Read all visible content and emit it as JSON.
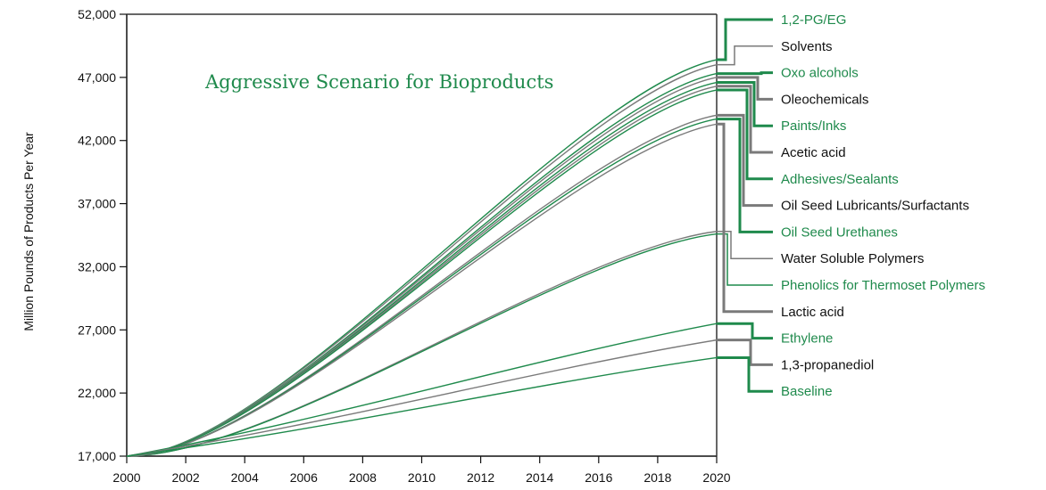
{
  "chart_data": {
    "type": "line",
    "title": "Aggressive Scenario for Bioproducts",
    "xlabel": "",
    "ylabel": "Million Pounds of Products Per Year",
    "xlim": [
      2000,
      2020
    ],
    "ylim": [
      17000,
      52000
    ],
    "x_ticks": [
      "2000",
      "2002",
      "2004",
      "2006",
      "2008",
      "2010",
      "2012",
      "2014",
      "2016",
      "2018",
      "2020"
    ],
    "y_ticks": [
      "17,000",
      "22,000",
      "27,000",
      "32,000",
      "37,000",
      "42,000",
      "47,000",
      "52,000"
    ],
    "grid": false,
    "legend_placement": "right",
    "start": {
      "x": 2000,
      "y": 17000
    },
    "series": [
      {
        "name": "1,2-PG/EG",
        "color": "#1f8a4c",
        "end": 48400,
        "weight": "thick",
        "shape": "s"
      },
      {
        "name": "Solvents",
        "color": "#7a7a7a",
        "end": 48000,
        "weight": "thin",
        "shape": "s"
      },
      {
        "name": "Oxo alcohols",
        "color": "#1f8a4c",
        "end": 47300,
        "weight": "thick",
        "shape": "s"
      },
      {
        "name": "Oleochemicals",
        "color": "#7a7a7a",
        "end": 47000,
        "weight": "thick",
        "shape": "s"
      },
      {
        "name": "Paints/Inks",
        "color": "#1f8a4c",
        "end": 46600,
        "weight": "thick",
        "shape": "s"
      },
      {
        "name": "Acetic acid",
        "color": "#7a7a7a",
        "end": 46300,
        "weight": "thick",
        "shape": "s"
      },
      {
        "name": "Adhesives/Sealants",
        "color": "#1f8a4c",
        "end": 46000,
        "weight": "thick",
        "shape": "s"
      },
      {
        "name": "Oil Seed Lubricants/Surfactants",
        "color": "#7a7a7a",
        "end": 44000,
        "weight": "thick",
        "shape": "s"
      },
      {
        "name": "Oil Seed Urethanes",
        "color": "#1f8a4c",
        "end": 43700,
        "weight": "thick",
        "shape": "s"
      },
      {
        "name": "Water Soluble Polymers",
        "color": "#7a7a7a",
        "end": 34800,
        "weight": "thin",
        "shape": "s"
      },
      {
        "name": "Phenolics for Thermoset Polymers",
        "color": "#1f8a4c",
        "end": 34600,
        "weight": "thin",
        "shape": "s"
      },
      {
        "name": "Lactic acid",
        "color": "#7a7a7a",
        "end": 43300,
        "weight": "thick",
        "shape": "s"
      },
      {
        "name": "Ethylene",
        "color": "#1f8a4c",
        "end": 27500,
        "weight": "thick",
        "shape": "c"
      },
      {
        "name": "1,3-propanediol",
        "color": "#7a7a7a",
        "end": 26200,
        "weight": "thick",
        "shape": "c"
      },
      {
        "name": "Baseline",
        "color": "#1f8a4c",
        "end": 24800,
        "weight": "thick",
        "shape": "c"
      }
    ]
  },
  "colors": {
    "green": "#1f8a4c",
    "gray": "#7a7a7a",
    "axis": "#111111"
  }
}
